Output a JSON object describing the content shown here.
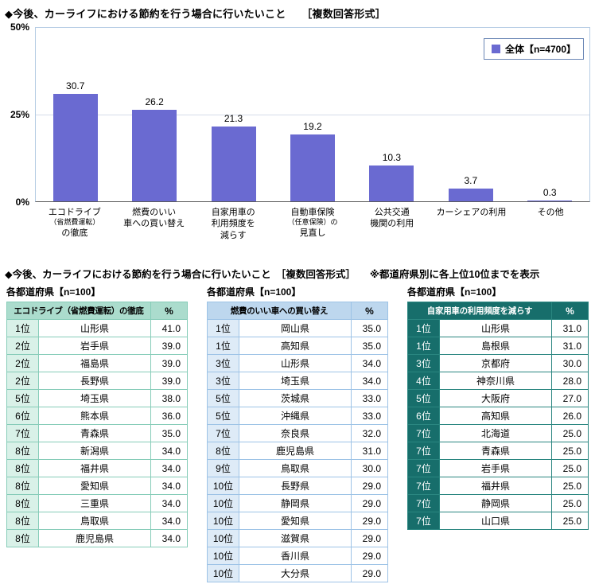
{
  "chart_title": "◆今後、カーライフにおける節約を行う場合に行いたいこと　　［複数回答形式］",
  "chart_data": {
    "type": "bar",
    "title": "今後、カーライフにおける節約を行う場合に行いたいこと",
    "format_note": "複数回答形式",
    "legend": "全体【n=4700】",
    "legend_position": "top-right",
    "grid": true,
    "ylim": [
      0,
      50
    ],
    "y_ticks": [
      {
        "label": "50%",
        "value": 50
      },
      {
        "label": "25%",
        "value": 25
      },
      {
        "label": "0%",
        "value": 0
      }
    ],
    "bar_color": "#6a6ad1",
    "categories": [
      "エコドライブ（省燃費運転）の徹底",
      "燃費のいい車への買い替え",
      "自家用車の利用頻度を減らす",
      "自動車保険（任意保険）の見直し",
      "公共交通機関の利用",
      "カーシェアの利用",
      "その他"
    ],
    "category_label_lines": [
      [
        "エコドライブ",
        "（省燃費運転）",
        "の徹底"
      ],
      [
        "燃費のいい",
        "車への買い替え"
      ],
      [
        "自家用車の",
        "利用頻度を",
        "減らす"
      ],
      [
        "自動車保険",
        "（任意保険）の",
        "見直し"
      ],
      [
        "公共交通",
        "機関の利用"
      ],
      [
        "カーシェアの利用"
      ],
      [
        "その他"
      ]
    ],
    "values": [
      30.7,
      26.2,
      21.3,
      19.2,
      10.3,
      3.7,
      0.3
    ],
    "value_labels": [
      "30.7",
      "26.2",
      "21.3",
      "19.2",
      "10.3",
      "3.7",
      "0.3"
    ]
  },
  "section2": {
    "title": "◆今後、カーライフにおける節約を行う場合に行いたいこと　［複数回答形式］",
    "note": "※都道府県別に各上位10位までを表示"
  },
  "colors": {
    "bar": "#6a6ad1",
    "table_green_header": "#abdccd",
    "table_blue_header": "#bdd7ee",
    "table_teal_header": "#176e6b"
  },
  "tables": [
    {
      "n_label": "各都道府県【n=100】",
      "item": "エコドライブ（省燃費運転）の徹底",
      "pct_header": "%",
      "theme": "green",
      "rows": [
        [
          "1位",
          "山形県",
          "41.0"
        ],
        [
          "2位",
          "岩手県",
          "39.0"
        ],
        [
          "2位",
          "福島県",
          "39.0"
        ],
        [
          "2位",
          "長野県",
          "39.0"
        ],
        [
          "5位",
          "埼玉県",
          "38.0"
        ],
        [
          "6位",
          "熊本県",
          "36.0"
        ],
        [
          "7位",
          "青森県",
          "35.0"
        ],
        [
          "8位",
          "新潟県",
          "34.0"
        ],
        [
          "8位",
          "福井県",
          "34.0"
        ],
        [
          "8位",
          "愛知県",
          "34.0"
        ],
        [
          "8位",
          "三重県",
          "34.0"
        ],
        [
          "8位",
          "鳥取県",
          "34.0"
        ],
        [
          "8位",
          "鹿児島県",
          "34.0"
        ]
      ]
    },
    {
      "n_label": "各都道府県【n=100】",
      "item": "燃費のいい車への買い替え",
      "pct_header": "%",
      "theme": "blue",
      "rows": [
        [
          "1位",
          "岡山県",
          "35.0"
        ],
        [
          "1位",
          "高知県",
          "35.0"
        ],
        [
          "3位",
          "山形県",
          "34.0"
        ],
        [
          "3位",
          "埼玉県",
          "34.0"
        ],
        [
          "5位",
          "茨城県",
          "33.0"
        ],
        [
          "5位",
          "沖縄県",
          "33.0"
        ],
        [
          "7位",
          "奈良県",
          "32.0"
        ],
        [
          "8位",
          "鹿児島県",
          "31.0"
        ],
        [
          "9位",
          "鳥取県",
          "30.0"
        ],
        [
          "10位",
          "長野県",
          "29.0"
        ],
        [
          "10位",
          "静岡県",
          "29.0"
        ],
        [
          "10位",
          "愛知県",
          "29.0"
        ],
        [
          "10位",
          "滋賀県",
          "29.0"
        ],
        [
          "10位",
          "香川県",
          "29.0"
        ],
        [
          "10位",
          "大分県",
          "29.0"
        ]
      ]
    },
    {
      "n_label": "各都道府県【n=100】",
      "item": "自家用車の利用頻度を減らす",
      "pct_header": "%",
      "theme": "teal",
      "rows": [
        [
          "1位",
          "山形県",
          "31.0"
        ],
        [
          "1位",
          "島根県",
          "31.0"
        ],
        [
          "3位",
          "京都府",
          "30.0"
        ],
        [
          "4位",
          "神奈川県",
          "28.0"
        ],
        [
          "5位",
          "大阪府",
          "27.0"
        ],
        [
          "6位",
          "高知県",
          "26.0"
        ],
        [
          "7位",
          "北海道",
          "25.0"
        ],
        [
          "7位",
          "青森県",
          "25.0"
        ],
        [
          "7位",
          "岩手県",
          "25.0"
        ],
        [
          "7位",
          "福井県",
          "25.0"
        ],
        [
          "7位",
          "静岡県",
          "25.0"
        ],
        [
          "7位",
          "山口県",
          "25.0"
        ]
      ]
    }
  ]
}
